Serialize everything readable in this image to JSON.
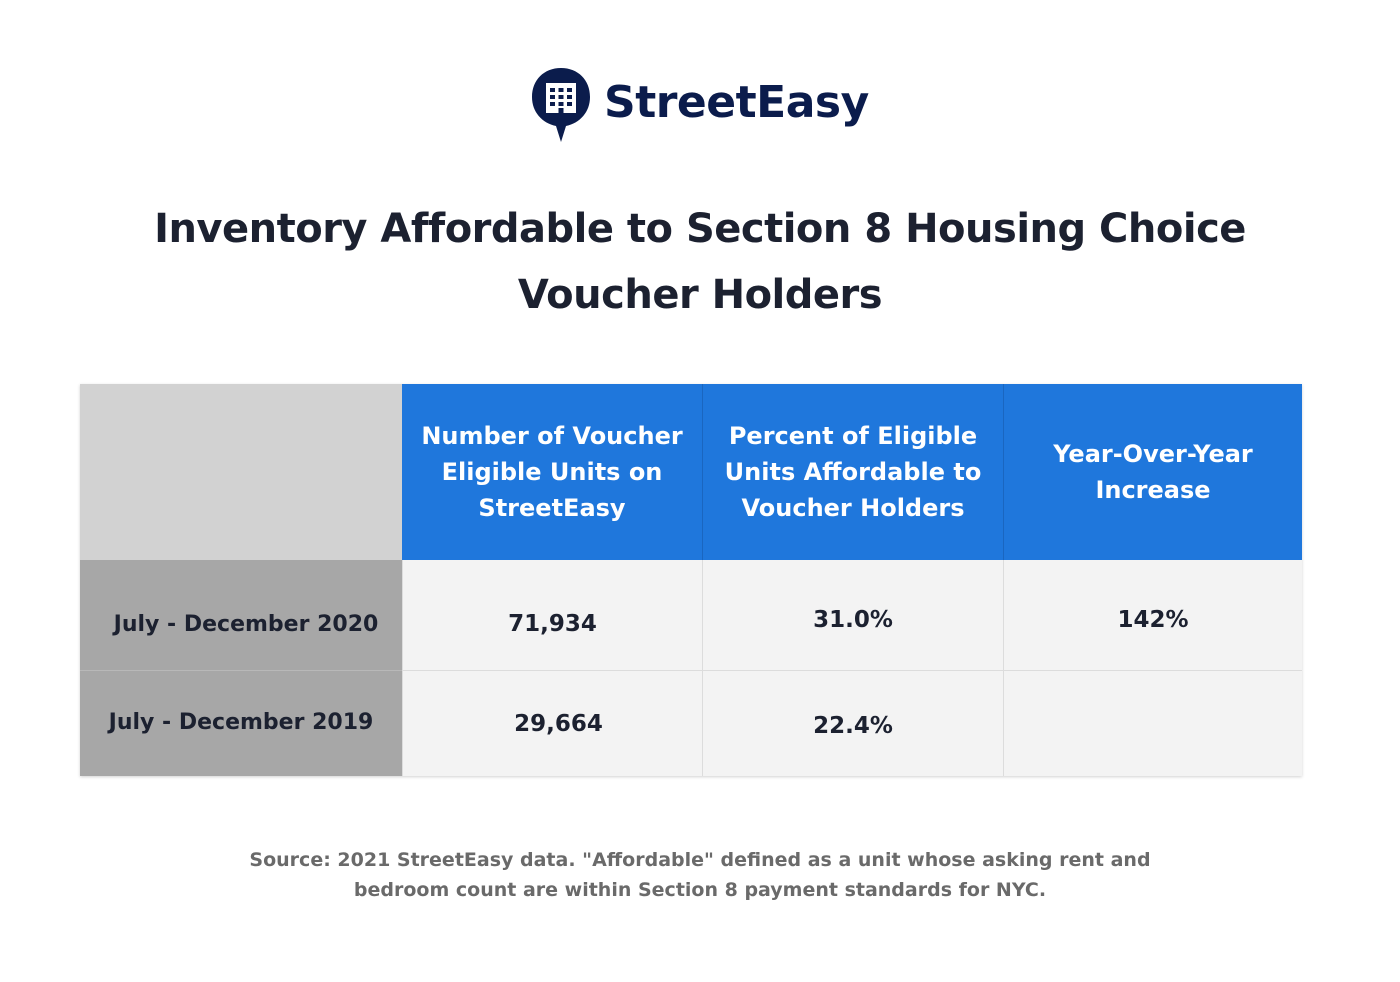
{
  "brand": {
    "name": "StreetEasy",
    "logo_icon": "building-speech-bubble-icon",
    "color": "#0b1c4c"
  },
  "title": "Inventory Affordable to Section 8 Housing Choice Voucher Holders",
  "chart_data": {
    "type": "table",
    "columns": [
      "",
      "Number of Voucher Eligible Units on StreetEasy",
      "Percent of Eligible Units Affordable to Voucher Holders",
      "Year-Over-Year Increase"
    ],
    "rows": [
      {
        "label": "July - December 2020",
        "units": "71,934",
        "percent": "31.0%",
        "yoy": "142%"
      },
      {
        "label": "July - December 2019",
        "units": "29,664",
        "percent": "22.4%",
        "yoy": ""
      }
    ],
    "colors": {
      "header": "#1f77dc",
      "corner": "#d2d2d2",
      "row_label": "#a7a7a7",
      "cell": "#f3f3f3"
    }
  },
  "footnote": "Source: 2021 StreetEasy data. \"Affordable\" defined as a unit whose asking rent and bedroom count are within Section 8 payment standards for NYC."
}
